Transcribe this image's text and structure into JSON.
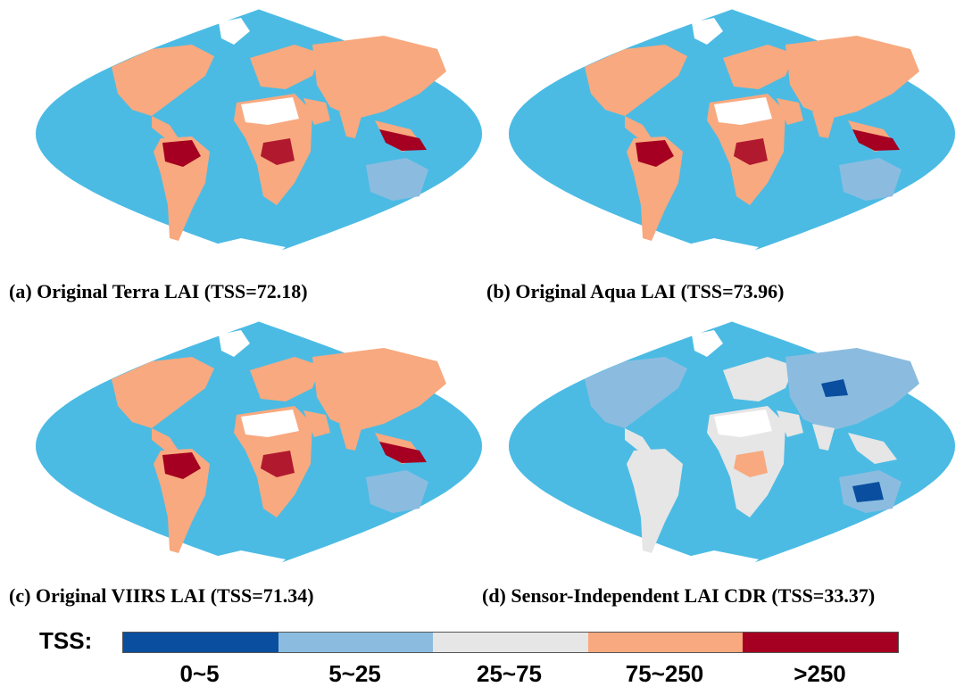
{
  "colors": {
    "ocean": "#4bbbe4",
    "class_0_5": "#0a4e9f",
    "class_5_25": "#8bbcdf",
    "class_25_75": "#e6e6e6",
    "class_75_250": "#f8a97f",
    "class_gt_250": "#a50021",
    "desert": "#ffffff"
  },
  "panels": [
    {
      "caption": "(a) Original Terra LAI (TSS=72.18)",
      "style": "high"
    },
    {
      "caption": "(b) Original Aqua LAI (TSS=73.96)",
      "style": "high"
    },
    {
      "caption": "(c) Original VIIRS LAI (TSS=71.34)",
      "style": "high"
    },
    {
      "caption": "(d) Sensor-Independent LAI CDR (TSS=33.37)",
      "style": "low"
    }
  ],
  "legend": {
    "title": "TSS:",
    "classes": [
      {
        "label": "0~5",
        "color": "#0a4e9f"
      },
      {
        "label": "5~25",
        "color": "#8bbcdf"
      },
      {
        "label": "25~75",
        "color": "#e6e6e6"
      },
      {
        "label": "75~250",
        "color": "#f8a97f"
      },
      {
        "label": ">250",
        "color": "#a50021"
      }
    ]
  }
}
